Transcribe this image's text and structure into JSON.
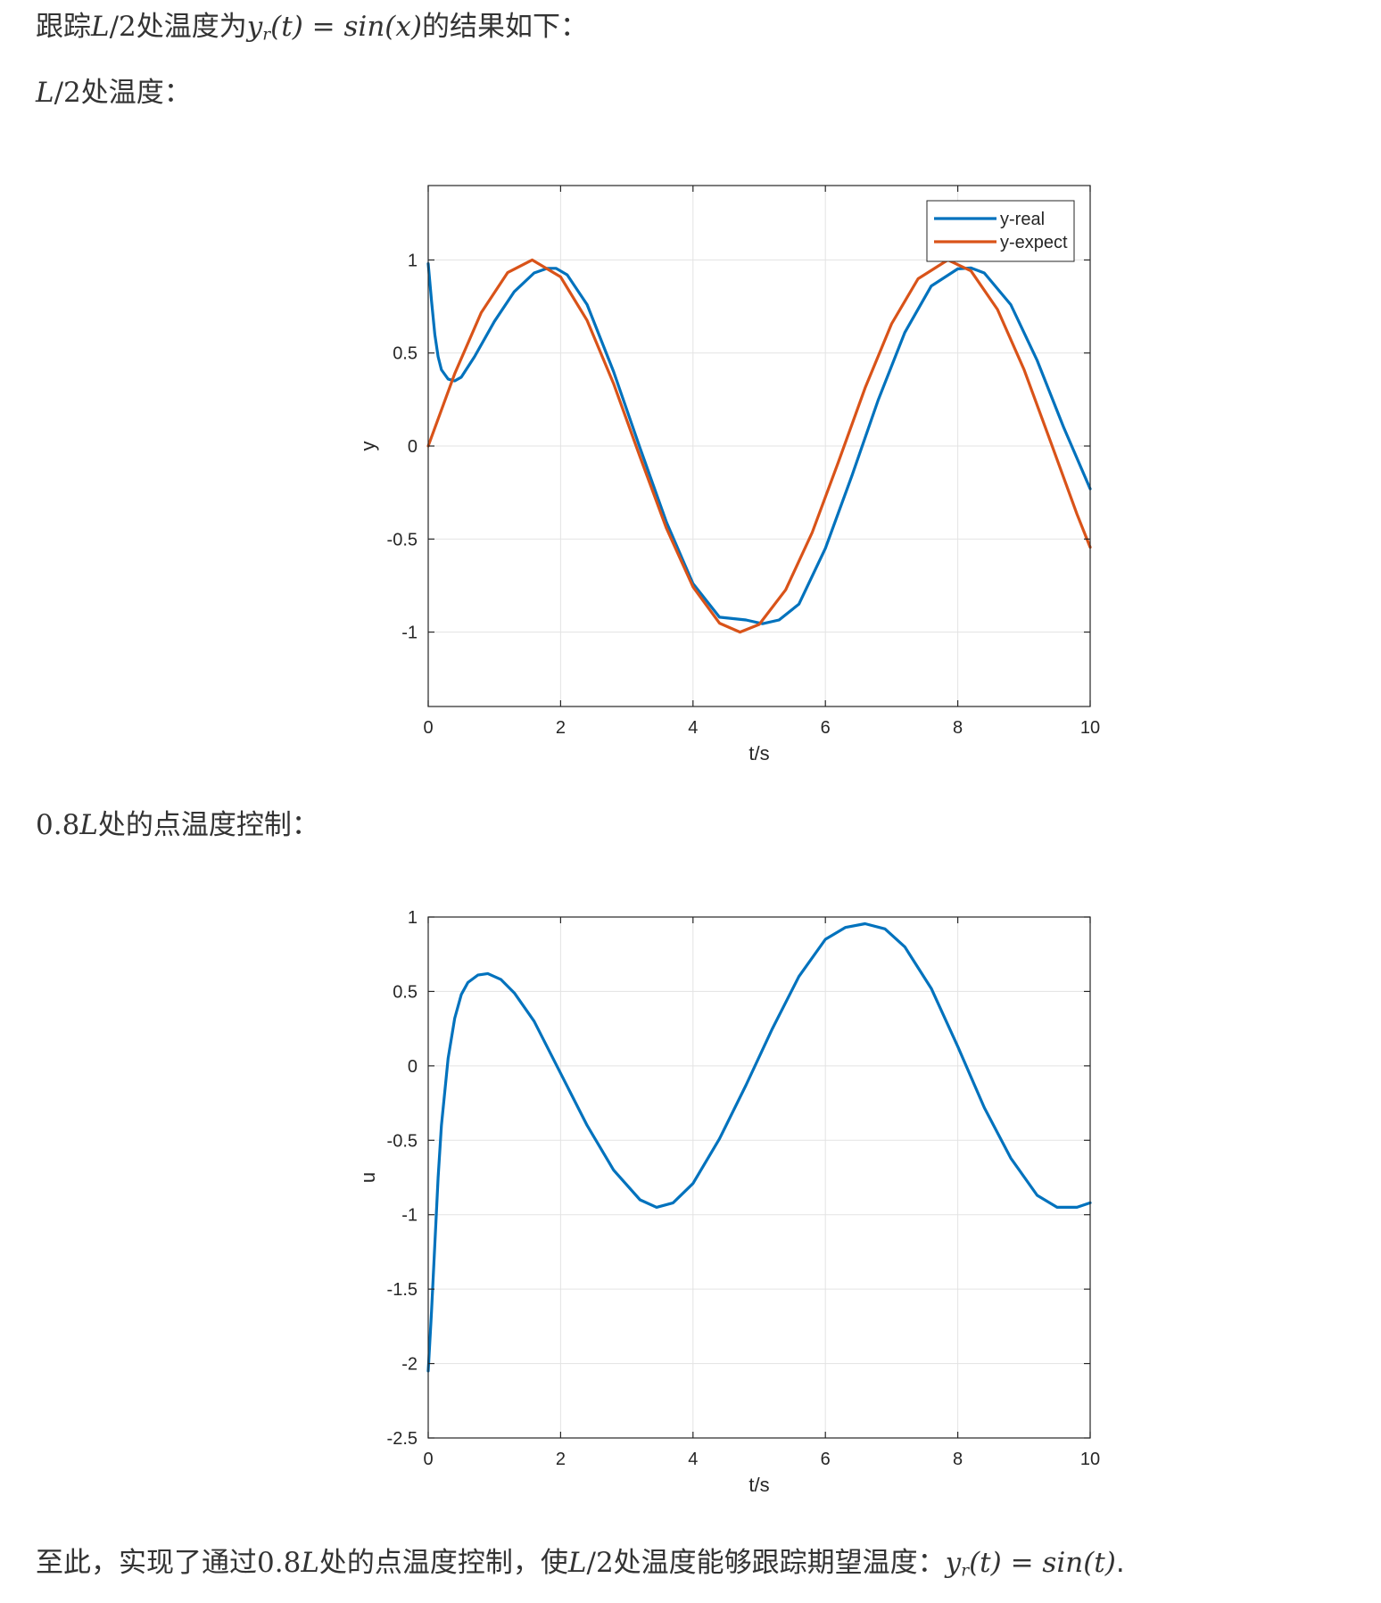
{
  "paragraphs": {
    "intro_prefix": "跟踪",
    "intro_math_a": "L",
    "intro_math_b": "/2",
    "intro_mid": "处温度为",
    "intro_math_y": "y",
    "intro_math_sub": "r",
    "intro_math_rest": "(t) = sin(x)",
    "intro_suffix": "的结果如下：",
    "heading1_math_a": "L",
    "heading1_math_b": "/2",
    "heading1_text": "处温度：",
    "heading2_math_a": "0.8",
    "heading2_math_b": "L",
    "heading2_text": "处的点温度控制：",
    "concl_a": "至此，实现了通过",
    "concl_math_a": "0.8",
    "concl_math_b": "L",
    "concl_b": "处的点温度控制，使",
    "concl_math_c": "L",
    "concl_math_d": "/2",
    "concl_c": "处温度能够跟踪期望温度：",
    "concl_math_y": "y",
    "concl_math_sub": "r",
    "concl_math_rest": "(t) = sin(t)",
    "concl_end": "."
  },
  "colors": {
    "y_real": "#0072BD",
    "y_expect": "#D95319",
    "u": "#0072BD",
    "grid": "#e3e3e3",
    "axis": "#262626"
  },
  "chart_data": [
    {
      "type": "line",
      "xlabel": "t/s",
      "ylabel": "y",
      "xlim": [
        0,
        10
      ],
      "ylim": [
        -1.4,
        1.4
      ],
      "xticks": [
        0,
        2,
        4,
        6,
        8,
        10
      ],
      "yticks": [
        -1,
        -0.5,
        0,
        0.5,
        1
      ],
      "xtick_labels": [
        "0",
        "2",
        "4",
        "6",
        "8",
        "10"
      ],
      "ytick_labels": [
        "-1",
        "-0.5",
        "0",
        "0.5",
        "1"
      ],
      "grid": true,
      "legend": "top-right",
      "series": [
        {
          "name": "y-real",
          "x": [
            0,
            0.05,
            0.1,
            0.15,
            0.2,
            0.3,
            0.4,
            0.5,
            0.7,
            1.0,
            1.3,
            1.6,
            1.8,
            1.93,
            2.1,
            2.4,
            2.8,
            3.2,
            3.6,
            4.0,
            4.4,
            4.8,
            5.05,
            5.3,
            5.6,
            6.0,
            6.4,
            6.8,
            7.2,
            7.6,
            8.0,
            8.2,
            8.4,
            8.8,
            9.2,
            9.6,
            10.0
          ],
          "y": [
            0.98,
            0.78,
            0.6,
            0.48,
            0.41,
            0.36,
            0.35,
            0.37,
            0.48,
            0.67,
            0.83,
            0.93,
            0.955,
            0.955,
            0.92,
            0.76,
            0.4,
            -0.01,
            -0.41,
            -0.74,
            -0.92,
            -0.935,
            -0.955,
            -0.935,
            -0.85,
            -0.55,
            -0.16,
            0.25,
            0.61,
            0.86,
            0.952,
            0.957,
            0.93,
            0.76,
            0.46,
            0.1,
            -0.23
          ]
        },
        {
          "name": "y-expect",
          "x": [
            0,
            0.4,
            0.8,
            1.2,
            1.57,
            2.0,
            2.4,
            2.8,
            3.2,
            3.6,
            4.0,
            4.4,
            4.71,
            5.0,
            5.4,
            5.8,
            6.2,
            6.6,
            7.0,
            7.4,
            7.85,
            8.2,
            8.6,
            9.0,
            9.4,
            9.8,
            10.0
          ],
          "y": [
            0,
            0.389,
            0.717,
            0.932,
            1.0,
            0.909,
            0.675,
            0.335,
            -0.058,
            -0.443,
            -0.757,
            -0.952,
            -1.0,
            -0.959,
            -0.773,
            -0.465,
            -0.083,
            0.312,
            0.657,
            0.899,
            1.0,
            0.941,
            0.734,
            0.412,
            0.025,
            -0.366,
            -0.544
          ]
        }
      ]
    },
    {
      "type": "line",
      "xlabel": "t/s",
      "ylabel": "u",
      "xlim": [
        0,
        10
      ],
      "ylim": [
        -2.5,
        1
      ],
      "xticks": [
        0,
        2,
        4,
        6,
        8,
        10
      ],
      "yticks": [
        -2.5,
        -2,
        -1.5,
        -1,
        -0.5,
        0,
        0.5,
        1
      ],
      "xtick_labels": [
        "0",
        "2",
        "4",
        "6",
        "8",
        "10"
      ],
      "ytick_labels": [
        "-2.5",
        "-2",
        "-1.5",
        "-1",
        "-0.5",
        "0",
        "0.5",
        "1"
      ],
      "grid": true,
      "series": [
        {
          "name": "",
          "x": [
            0,
            0.05,
            0.1,
            0.15,
            0.2,
            0.3,
            0.4,
            0.5,
            0.6,
            0.75,
            0.9,
            1.1,
            1.3,
            1.6,
            2.0,
            2.4,
            2.8,
            3.2,
            3.45,
            3.7,
            4.0,
            4.4,
            4.8,
            5.2,
            5.6,
            6.0,
            6.3,
            6.6,
            6.9,
            7.2,
            7.6,
            8.0,
            8.4,
            8.8,
            9.2,
            9.5,
            9.8,
            10.0
          ],
          "y": [
            -2.05,
            -1.65,
            -1.2,
            -0.75,
            -0.4,
            0.05,
            0.32,
            0.48,
            0.56,
            0.61,
            0.62,
            0.58,
            0.49,
            0.3,
            -0.05,
            -0.4,
            -0.7,
            -0.9,
            -0.95,
            -0.92,
            -0.79,
            -0.49,
            -0.13,
            0.25,
            0.6,
            0.85,
            0.93,
            0.955,
            0.92,
            0.8,
            0.52,
            0.13,
            -0.28,
            -0.62,
            -0.87,
            -0.95,
            -0.95,
            -0.92
          ]
        }
      ]
    }
  ]
}
